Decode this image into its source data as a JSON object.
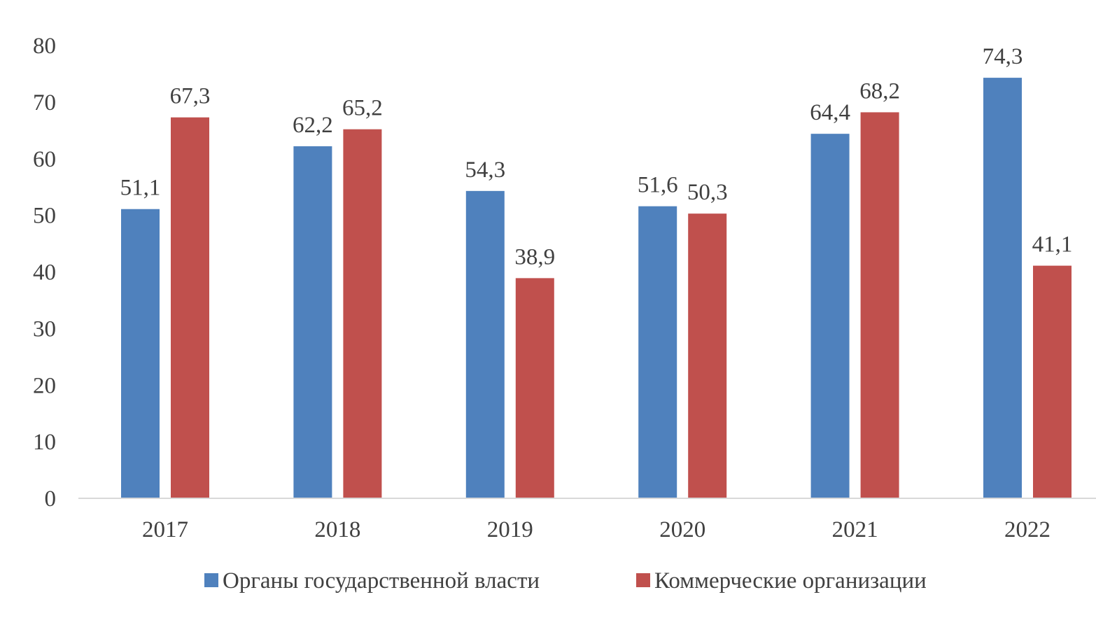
{
  "chart_data": {
    "type": "bar",
    "title": "",
    "xlabel": "",
    "ylabel": "",
    "categories": [
      "2017",
      "2018",
      "2019",
      "2020",
      "2021",
      "2022"
    ],
    "series": [
      {
        "name": "Органы государственной власти",
        "color": "#4F81BD",
        "values": [
          51.1,
          62.2,
          54.3,
          51.6,
          64.4,
          74.3
        ],
        "labels": [
          "51,1",
          "62,2",
          "54,3",
          "51,6",
          "64,4",
          "74,3"
        ]
      },
      {
        "name": "Коммерческие организации",
        "color": "#C0504D",
        "values": [
          67.3,
          65.2,
          38.9,
          50.3,
          68.2,
          41.1
        ],
        "labels": [
          "67,3",
          "65,2",
          "38,9",
          "50,3",
          "68,2",
          "41,1"
        ]
      }
    ],
    "ylim": [
      0,
      80
    ],
    "yticks": [
      0,
      10,
      20,
      30,
      40,
      50,
      60,
      70,
      80
    ],
    "grid": false,
    "legend_position": "bottom",
    "axis_color": "#D9D9D9"
  }
}
